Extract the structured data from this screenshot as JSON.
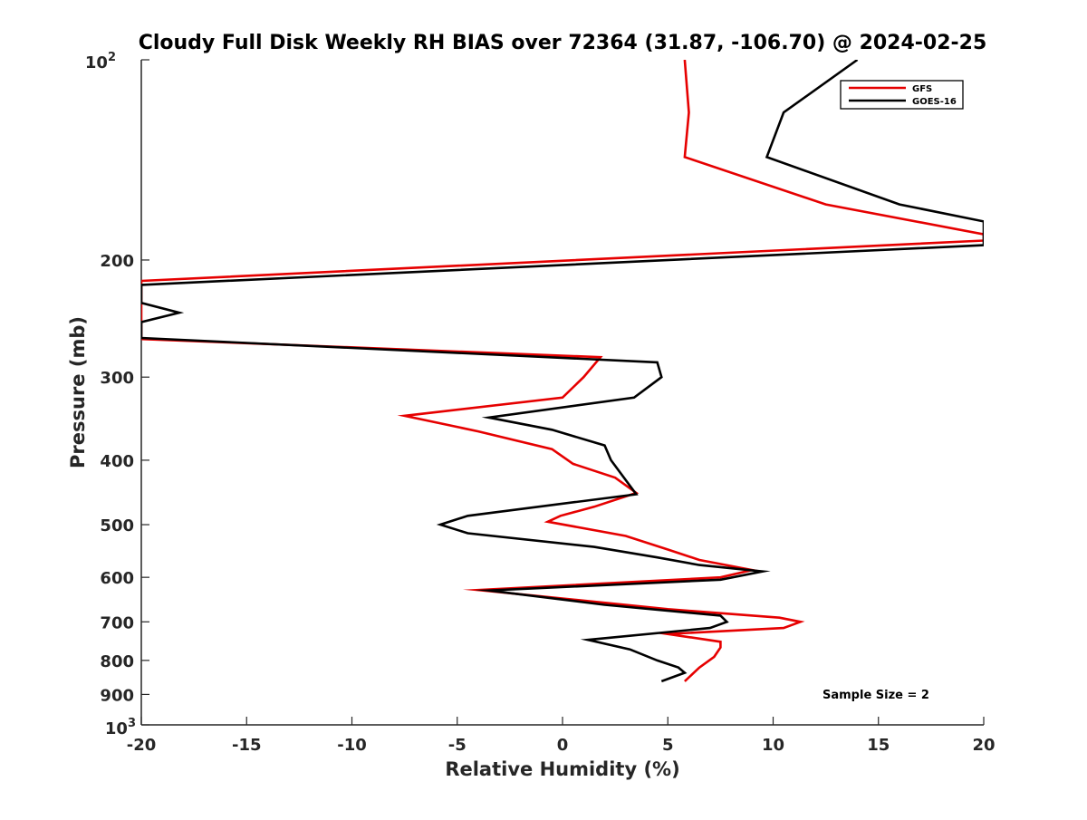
{
  "chart_data": {
    "type": "line",
    "title": "Cloudy Full Disk Weekly RH BIAS over 72364 (31.87, -106.70) @ 2024-02-25",
    "xlabel": "Relative Humidity (%)",
    "ylabel": "Pressure (mb)",
    "xlim": [
      -20,
      20
    ],
    "ylim": [
      100,
      1000
    ],
    "yscale": "log",
    "y_reversed": true,
    "grid": false,
    "legend_position": "top-right",
    "x_ticks": [
      "-20",
      "-15",
      "-10",
      "-5",
      "0",
      "5",
      "10",
      "15",
      "20"
    ],
    "y_ticks": [
      {
        "value": 200,
        "label": "200"
      },
      {
        "value": 300,
        "label": "300"
      },
      {
        "value": 400,
        "label": "400"
      },
      {
        "value": 500,
        "label": "500"
      },
      {
        "value": 600,
        "label": "600"
      },
      {
        "value": 700,
        "label": "700"
      },
      {
        "value": 800,
        "label": "800"
      },
      {
        "value": 900,
        "label": "900"
      }
    ],
    "y_tick_top": {
      "base": "10",
      "exp": "2"
    },
    "y_tick_bottom": {
      "base": "10",
      "exp": "3"
    },
    "annotation": "Sample Size = 2",
    "series": [
      {
        "name": "GFS",
        "color": "#e60000",
        "points": [
          [
            5.8,
            100
          ],
          [
            6.0,
            120
          ],
          [
            5.8,
            140
          ],
          [
            12.5,
            165
          ],
          [
            20.0,
            183
          ],
          [
            20.0,
            187
          ],
          [
            -20.0,
            215
          ],
          [
            -20.0,
            263
          ],
          [
            1.8,
            280
          ],
          [
            1.0,
            300
          ],
          [
            0.0,
            322
          ],
          [
            -7.5,
            343
          ],
          [
            -4.0,
            362
          ],
          [
            -0.5,
            385
          ],
          [
            0.5,
            405
          ],
          [
            2.5,
            425
          ],
          [
            3.5,
            448
          ],
          [
            1.5,
            470
          ],
          [
            -0.1,
            485
          ],
          [
            -0.7,
            495
          ],
          [
            3.0,
            520
          ],
          [
            5.0,
            545
          ],
          [
            6.5,
            565
          ],
          [
            9.0,
            585
          ],
          [
            7.5,
            600
          ],
          [
            -4.0,
            627
          ],
          [
            5.0,
            670
          ],
          [
            10.3,
            690
          ],
          [
            11.3,
            700
          ],
          [
            10.5,
            715
          ],
          [
            5.0,
            730
          ],
          [
            7.5,
            750
          ],
          [
            7.5,
            765
          ],
          [
            7.2,
            790
          ],
          [
            6.5,
            820
          ],
          [
            5.8,
            860
          ]
        ]
      },
      {
        "name": "GOES-16",
        "color": "#000000",
        "points": [
          [
            14.0,
            100
          ],
          [
            10.5,
            120
          ],
          [
            9.7,
            140
          ],
          [
            16.0,
            165
          ],
          [
            20.0,
            175
          ],
          [
            20.0,
            190
          ],
          [
            -20.0,
            218
          ],
          [
            -20.0,
            232
          ],
          [
            -18.2,
            240
          ],
          [
            -20.0,
            248
          ],
          [
            -20.0,
            262
          ],
          [
            4.5,
            285
          ],
          [
            4.7,
            300
          ],
          [
            3.4,
            322
          ],
          [
            -3.5,
            345
          ],
          [
            -0.5,
            360
          ],
          [
            2.0,
            380
          ],
          [
            2.3,
            400
          ],
          [
            3.5,
            450
          ],
          [
            -4.5,
            485
          ],
          [
            -5.8,
            500
          ],
          [
            -4.5,
            515
          ],
          [
            1.5,
            540
          ],
          [
            4.5,
            560
          ],
          [
            6.5,
            575
          ],
          [
            9.5,
            588
          ],
          [
            7.5,
            605
          ],
          [
            -3.5,
            628
          ],
          [
            2.0,
            660
          ],
          [
            7.5,
            685
          ],
          [
            7.8,
            700
          ],
          [
            7.0,
            715
          ],
          [
            1.2,
            745
          ],
          [
            3.2,
            770
          ],
          [
            4.5,
            800
          ],
          [
            5.5,
            820
          ],
          [
            5.8,
            835
          ],
          [
            4.7,
            860
          ]
        ]
      }
    ]
  }
}
